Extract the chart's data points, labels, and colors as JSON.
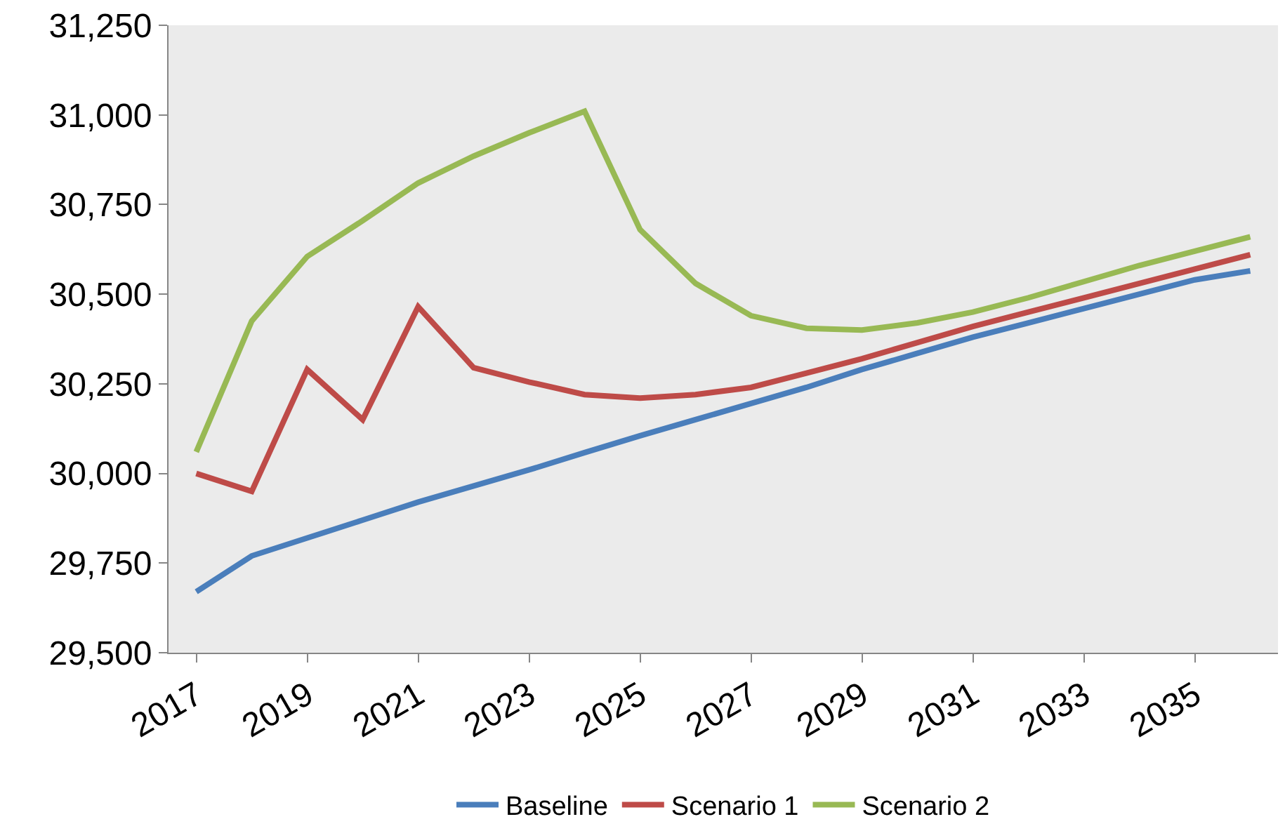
{
  "chart_data": {
    "type": "line",
    "x": [
      2017,
      2018,
      2019,
      2020,
      2021,
      2022,
      2023,
      2024,
      2025,
      2026,
      2027,
      2028,
      2029,
      2030,
      2031,
      2032,
      2033,
      2034,
      2035,
      2036
    ],
    "series": [
      {
        "name": "Baseline",
        "color": "#4a7ebb",
        "values": [
          29670,
          29770,
          29820,
          29870,
          29920,
          29965,
          30010,
          30058,
          30105,
          30150,
          30195,
          30240,
          30290,
          30335,
          30380,
          30420,
          30460,
          30500,
          30540,
          30565
        ]
      },
      {
        "name": "Scenario 1",
        "color": "#be4b48",
        "values": [
          30000,
          29950,
          30290,
          30150,
          30465,
          30295,
          30255,
          30220,
          30210,
          30220,
          30240,
          30280,
          30320,
          30365,
          30410,
          30450,
          30490,
          30530,
          30570,
          30610
        ]
      },
      {
        "name": "Scenario 2",
        "color": "#98b954",
        "values": [
          30060,
          30425,
          30605,
          30705,
          30810,
          30885,
          30950,
          31010,
          30680,
          30530,
          30440,
          30405,
          30400,
          30420,
          30450,
          30490,
          30535,
          30580,
          30620,
          30660
        ]
      }
    ],
    "xlim": [
      2016.5,
      2036.5
    ],
    "xticks": [
      2017,
      2019,
      2021,
      2023,
      2025,
      2027,
      2029,
      2031,
      2033,
      2035
    ],
    "ylim": [
      29500,
      31250
    ],
    "yticks": [
      {
        "value": 29500,
        "label": "29,500"
      },
      {
        "value": 29750,
        "label": "29,750"
      },
      {
        "value": 30000,
        "label": "30,000"
      },
      {
        "value": 30250,
        "label": "30,250"
      },
      {
        "value": 30500,
        "label": "30,500"
      },
      {
        "value": 30750,
        "label": "30,750"
      },
      {
        "value": 31000,
        "label": "31,000"
      },
      {
        "value": 31250,
        "label": "31,250"
      }
    ],
    "grid": false,
    "legend": "bottom",
    "marker": "none",
    "line_style": "solid"
  }
}
